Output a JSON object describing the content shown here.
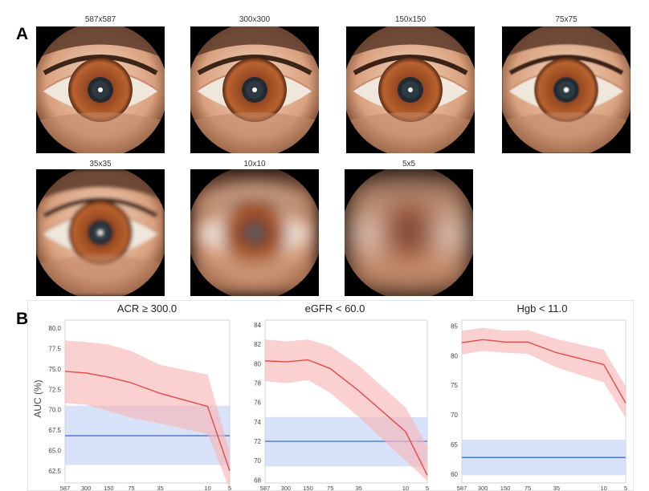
{
  "panels": {
    "a": "A",
    "b": "B"
  },
  "thumbnails": [
    {
      "label": "587x587",
      "blur": 0
    },
    {
      "label": "300x300",
      "blur": 0
    },
    {
      "label": "150x150",
      "blur": 0.3
    },
    {
      "label": "75x75",
      "blur": 0.8
    },
    {
      "label": "35x35",
      "blur": 2.2
    },
    {
      "label": "10x10",
      "blur": 9
    },
    {
      "label": "5x5",
      "blur": 16
    }
  ],
  "ylabel": "AUC (%)",
  "colors": {
    "model_line": "#e34a4a",
    "model_band": "#f7b7b7",
    "baseline_line": "#4a78d6",
    "baseline_band": "#c3d3f6"
  },
  "chart_data": [
    {
      "type": "line",
      "title": "ACR ≥ 300.0",
      "x": [
        "587",
        "300",
        "150",
        "75",
        "35",
        "10",
        "5"
      ],
      "ylim": [
        61,
        81
      ],
      "yticks": [
        "80.0",
        "77.5",
        "75.0",
        "72.5",
        "70.0",
        "67.5",
        "65.0",
        "62.5"
      ],
      "series": [
        {
          "values": [
            74.7,
            74.5,
            74.0,
            73.3,
            72.0,
            70.4,
            62.5
          ],
          "lower": [
            70.8,
            70.6,
            69.8,
            69.0,
            68.3,
            67.0,
            60.2
          ],
          "upper": [
            78.5,
            78.3,
            78.0,
            77.2,
            75.5,
            74.3,
            64.8
          ]
        },
        {
          "values": [
            66.8,
            66.8,
            66.8,
            66.8,
            66.8,
            66.8,
            66.8
          ],
          "lower": [
            63.2,
            63.2,
            63.2,
            63.2,
            63.2,
            63.2,
            63.2
          ],
          "upper": [
            70.5,
            70.5,
            70.5,
            70.5,
            70.5,
            70.5,
            70.5
          ]
        }
      ]
    },
    {
      "type": "line",
      "title": "eGFR < 60.0",
      "x": [
        "587",
        "300",
        "150",
        "75",
        "35",
        "10",
        "5"
      ],
      "ylim": [
        67.7,
        84.5
      ],
      "yticks": [
        "84",
        "82",
        "80",
        "78",
        "76",
        "74",
        "72",
        "70",
        "68"
      ],
      "series": [
        {
          "values": [
            80.3,
            80.2,
            80.4,
            79.5,
            77.2,
            73.0,
            68.5
          ],
          "lower": [
            78.2,
            78.0,
            78.3,
            77.0,
            74.5,
            70.0,
            67.9
          ],
          "upper": [
            82.5,
            82.3,
            82.5,
            81.8,
            79.8,
            75.5,
            71.5
          ]
        },
        {
          "values": [
            72.0,
            72.0,
            72.0,
            72.0,
            72.0,
            72.0,
            72.0
          ],
          "lower": [
            69.4,
            69.4,
            69.4,
            69.4,
            69.4,
            69.4,
            69.4
          ],
          "upper": [
            74.5,
            74.5,
            74.5,
            74.5,
            74.5,
            74.5,
            74.5
          ]
        }
      ]
    },
    {
      "type": "line",
      "title": "Hgb < 11.0",
      "x": [
        "587",
        "300",
        "150",
        "75",
        "35",
        "10",
        "5"
      ],
      "ylim": [
        58.5,
        86
      ],
      "yticks": [
        "85",
        "80",
        "75",
        "70",
        "65",
        "60"
      ],
      "series": [
        {
          "values": [
            82.2,
            82.7,
            82.3,
            82.3,
            80.5,
            78.5,
            72.0
          ],
          "lower": [
            80.2,
            80.8,
            80.5,
            80.3,
            78.0,
            75.5,
            69.5
          ],
          "upper": [
            84.2,
            84.7,
            84.2,
            84.3,
            82.8,
            81.0,
            74.8
          ]
        },
        {
          "values": [
            62.8,
            62.8,
            62.8,
            62.8,
            62.8,
            62.8,
            62.8
          ],
          "lower": [
            59.8,
            59.8,
            59.8,
            59.8,
            59.8,
            59.8,
            59.8
          ],
          "upper": [
            65.8,
            65.8,
            65.8,
            65.8,
            65.8,
            65.8,
            65.8
          ]
        }
      ]
    }
  ]
}
